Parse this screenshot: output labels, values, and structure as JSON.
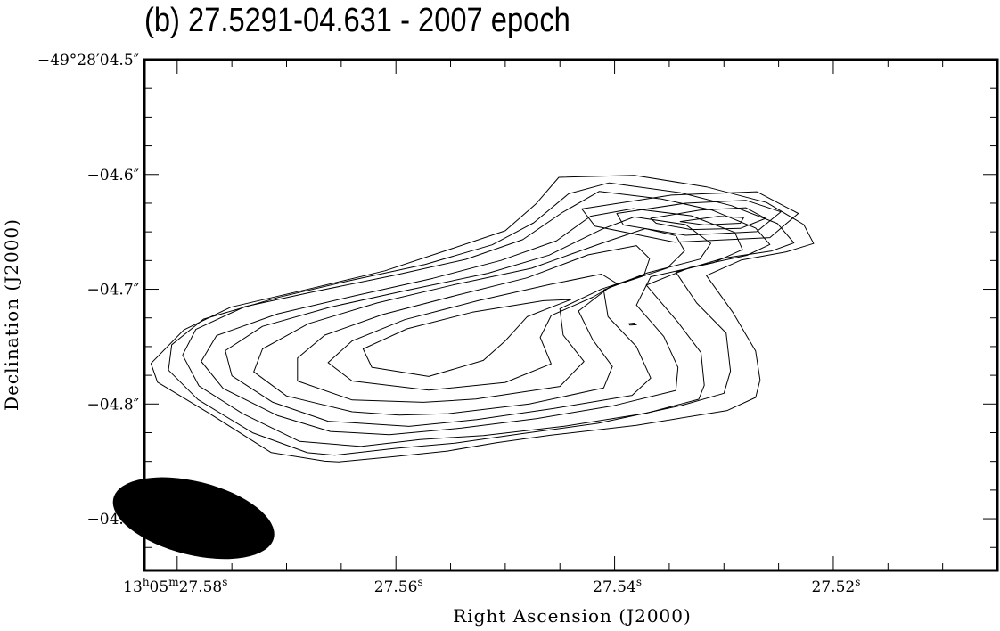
{
  "title": "(b) 27.5291-04.631 - 2007 epoch",
  "chart_data": {
    "type": "contour",
    "title": "(b) 27.5291-04.631 - 2007 epoch",
    "xlabel": "Right Ascension (J2000)",
    "ylabel": "Declination (J2000)",
    "xlim": [
      27.583,
      27.505
    ],
    "ylim": [
      -4.945,
      -4.5
    ],
    "x_ticks": [
      {
        "value": 27.58,
        "label_prefix": "13",
        "h": "h",
        "mid": "05",
        "m": "m",
        "sec": "27.58",
        "s": "s"
      },
      {
        "value": 27.56,
        "label": "27.56",
        "s": "s"
      },
      {
        "value": 27.54,
        "label": "27.54",
        "s": "s"
      },
      {
        "value": 27.52,
        "label": "27.52",
        "s": "s"
      }
    ],
    "y_ticks": [
      {
        "value": -4.5,
        "label": "−49°28′04.5″"
      },
      {
        "value": -4.6,
        "label": "−04.6″"
      },
      {
        "value": -4.7,
        "label": "−04.7″"
      },
      {
        "value": -4.8,
        "label": "−04.8″"
      },
      {
        "value": -4.9,
        "label": "−04.9″"
      }
    ],
    "contours": [
      [
        [
          27.5652,
          -4.8504
        ],
        [
          27.5603,
          -4.846
        ],
        [
          27.5553,
          -4.841
        ],
        [
          27.5508,
          -4.8337
        ],
        [
          27.5459,
          -4.8273
        ],
        [
          27.538,
          -4.8186
        ],
        [
          27.5297,
          -4.8057
        ],
        [
          27.5271,
          -4.7943
        ],
        [
          27.5267,
          -4.779
        ],
        [
          27.5271,
          -4.7539
        ],
        [
          27.5292,
          -4.72
        ],
        [
          27.5316,
          -4.6881
        ],
        [
          27.5284,
          -4.6745
        ],
        [
          27.5243,
          -4.6674
        ],
        [
          27.5218,
          -4.6601
        ],
        [
          27.5227,
          -4.6437
        ],
        [
          27.5261,
          -4.6244
        ],
        [
          27.5316,
          -4.6108
        ],
        [
          27.5382,
          -4.6007
        ],
        [
          27.5451,
          -4.6025
        ],
        [
          27.5472,
          -4.6257
        ],
        [
          27.55,
          -4.649
        ],
        [
          27.5548,
          -4.6643
        ],
        [
          27.561,
          -4.6839
        ],
        [
          27.5678,
          -4.6994
        ],
        [
          27.5751,
          -4.7157
        ],
        [
          27.5794,
          -4.7355
        ],
        [
          27.5824,
          -4.7647
        ],
        [
          27.5818,
          -4.781
        ],
        [
          27.5771,
          -4.808
        ],
        [
          27.5714,
          -4.8423
        ],
        [
          27.5665,
          -4.8498
        ]
      ],
      [
        [
          27.5656,
          -4.8446
        ],
        [
          27.56,
          -4.8386
        ],
        [
          27.5546,
          -4.8341
        ],
        [
          27.5485,
          -4.8259
        ],
        [
          27.5415,
          -4.8168
        ],
        [
          27.5339,
          -4.8013
        ],
        [
          27.53,
          -4.7907
        ],
        [
          27.5294,
          -4.7713
        ],
        [
          27.5298,
          -4.7381
        ],
        [
          27.5325,
          -4.7119
        ],
        [
          27.5344,
          -4.6851
        ],
        [
          27.53,
          -4.6729
        ],
        [
          27.5257,
          -4.6668
        ],
        [
          27.5236,
          -4.6596
        ],
        [
          27.5251,
          -4.6428
        ],
        [
          27.5293,
          -4.6272
        ],
        [
          27.534,
          -4.6158
        ],
        [
          27.5405,
          -4.6073
        ],
        [
          27.5442,
          -4.6168
        ],
        [
          27.5474,
          -4.6421
        ],
        [
          27.5512,
          -4.6613
        ],
        [
          27.5573,
          -4.6783
        ],
        [
          27.564,
          -4.692
        ],
        [
          27.5708,
          -4.7072
        ],
        [
          27.5776,
          -4.7261
        ],
        [
          27.5805,
          -4.7484
        ],
        [
          27.5808,
          -4.7705
        ],
        [
          27.5781,
          -4.7961
        ],
        [
          27.5731,
          -4.8251
        ],
        [
          27.5681,
          -4.8424
        ]
      ],
      [
        [
          27.5632,
          -4.837
        ],
        [
          27.5578,
          -4.831
        ],
        [
          27.552,
          -4.8275
        ],
        [
          27.5446,
          -4.8194
        ],
        [
          27.5371,
          -4.808
        ],
        [
          27.5323,
          -4.7959
        ],
        [
          27.5318,
          -4.7837
        ],
        [
          27.5321,
          -4.7553
        ],
        [
          27.5342,
          -4.7288
        ],
        [
          27.5371,
          -4.6964
        ],
        [
          27.5331,
          -4.681
        ],
        [
          27.5279,
          -4.6705
        ],
        [
          27.5258,
          -4.661
        ],
        [
          27.5271,
          -4.6467
        ],
        [
          27.5311,
          -4.631
        ],
        [
          27.5357,
          -4.6213
        ],
        [
          27.5414,
          -4.6147
        ],
        [
          27.5448,
          -4.6333
        ],
        [
          27.5484,
          -4.6568
        ],
        [
          27.5536,
          -4.674
        ],
        [
          27.5603,
          -4.6882
        ],
        [
          27.5672,
          -4.7015
        ],
        [
          27.5738,
          -4.7151
        ],
        [
          27.5783,
          -4.735
        ],
        [
          27.5795,
          -4.7573
        ],
        [
          27.578,
          -4.7843
        ],
        [
          27.574,
          -4.8085
        ],
        [
          27.5688,
          -4.8326
        ]
      ],
      [
        [
          27.5606,
          -4.8268
        ],
        [
          27.554,
          -4.821
        ],
        [
          27.5471,
          -4.8127
        ],
        [
          27.5401,
          -4.8015
        ],
        [
          27.5344,
          -4.7882
        ],
        [
          27.5342,
          -4.7681
        ],
        [
          27.5355,
          -4.7412
        ],
        [
          27.538,
          -4.7138
        ],
        [
          27.5367,
          -4.6891
        ],
        [
          27.531,
          -4.677
        ],
        [
          27.5283,
          -4.6655
        ],
        [
          27.529,
          -4.6505
        ],
        [
          27.533,
          -4.636
        ],
        [
          27.5383,
          -4.6298
        ],
        [
          27.5422,
          -4.6364
        ],
        [
          27.5453,
          -4.6577
        ],
        [
          27.5504,
          -4.6749
        ],
        [
          27.5566,
          -4.6904
        ],
        [
          27.5638,
          -4.7058
        ],
        [
          27.5708,
          -4.7214
        ],
        [
          27.5764,
          -4.7404
        ],
        [
          27.5778,
          -4.7629
        ],
        [
          27.5758,
          -4.7864
        ],
        [
          27.5708,
          -4.8102
        ],
        [
          27.566,
          -4.8239
        ]
      ],
      [
        [
          27.5588,
          -4.8195
        ],
        [
          27.5526,
          -4.8136
        ],
        [
          27.5456,
          -4.804
        ],
        [
          27.5384,
          -4.7925
        ],
        [
          27.5367,
          -4.7774
        ],
        [
          27.538,
          -4.75
        ],
        [
          27.5406,
          -4.724
        ],
        [
          27.541,
          -4.7007
        ],
        [
          27.537,
          -4.6857
        ],
        [
          27.5322,
          -4.6738
        ],
        [
          27.5312,
          -4.66
        ],
        [
          27.5335,
          -4.6437
        ],
        [
          27.5382,
          -4.637
        ],
        [
          27.5412,
          -4.6479
        ],
        [
          27.546,
          -4.6703
        ],
        [
          27.5516,
          -4.6861
        ],
        [
          27.559,
          -4.701
        ],
        [
          27.566,
          -4.7156
        ],
        [
          27.5722,
          -4.7324
        ],
        [
          27.5756,
          -4.7536
        ],
        [
          27.575,
          -4.7755
        ],
        [
          27.5713,
          -4.7983
        ],
        [
          27.5662,
          -4.815
        ]
      ],
      [
        [
          27.5552,
          -4.8084
        ],
        [
          27.5478,
          -4.8
        ],
        [
          27.541,
          -4.786
        ],
        [
          27.5402,
          -4.7673
        ],
        [
          27.542,
          -4.744
        ],
        [
          27.5433,
          -4.719
        ],
        [
          27.5405,
          -4.6984
        ],
        [
          27.5352,
          -4.6816
        ],
        [
          27.5336,
          -4.6666
        ],
        [
          27.5344,
          -4.6533
        ],
        [
          27.5372,
          -4.6472
        ],
        [
          27.5412,
          -4.66
        ],
        [
          27.5476,
          -4.6817
        ],
        [
          27.5548,
          -4.6963
        ],
        [
          27.5617,
          -4.7119
        ],
        [
          27.568,
          -4.73
        ],
        [
          27.5722,
          -4.752
        ],
        [
          27.573,
          -4.772
        ],
        [
          27.57,
          -4.793
        ],
        [
          27.564,
          -4.8068
        ],
        [
          27.5597,
          -4.8097
        ]
      ],
      [
        [
          27.5527,
          -4.7957
        ],
        [
          27.545,
          -4.7847
        ],
        [
          27.5428,
          -4.763
        ],
        [
          27.5447,
          -4.74
        ],
        [
          27.545,
          -4.717
        ],
        [
          27.5412,
          -4.6998
        ],
        [
          27.5373,
          -4.6876
        ],
        [
          27.5368,
          -4.6733
        ],
        [
          27.538,
          -4.662
        ],
        [
          27.5424,
          -4.67
        ],
        [
          27.548,
          -4.69
        ],
        [
          27.5545,
          -4.7054
        ],
        [
          27.5612,
          -4.722
        ],
        [
          27.5665,
          -4.74
        ],
        [
          27.569,
          -4.76
        ],
        [
          27.569,
          -4.78
        ],
        [
          27.564,
          -4.7965
        ],
        [
          27.5575,
          -4.7985
        ]
      ],
      [
        [
          27.55,
          -4.7812
        ],
        [
          27.5458,
          -4.765
        ],
        [
          27.5468,
          -4.742
        ],
        [
          27.5458,
          -4.723
        ],
        [
          27.542,
          -4.707
        ],
        [
          27.5398,
          -4.695
        ],
        [
          27.5412,
          -4.6868
        ],
        [
          27.546,
          -4.696
        ],
        [
          27.5525,
          -4.71
        ],
        [
          27.5592,
          -4.7265
        ],
        [
          27.564,
          -4.745
        ],
        [
          27.5662,
          -4.764
        ],
        [
          27.564,
          -4.78
        ],
        [
          27.557,
          -4.788
        ]
      ],
      [
        [
          27.552,
          -4.762
        ],
        [
          27.55,
          -4.745
        ],
        [
          27.548,
          -4.724
        ],
        [
          27.544,
          -4.709
        ],
        [
          27.5465,
          -4.71
        ],
        [
          27.553,
          -4.72
        ],
        [
          27.559,
          -4.7345
        ],
        [
          27.563,
          -4.752
        ],
        [
          27.5622,
          -4.768
        ],
        [
          27.557,
          -4.776
        ]
      ],
      [
        [
          27.5367,
          -4.6382
        ],
        [
          27.5322,
          -4.631
        ],
        [
          27.528,
          -4.629
        ],
        [
          27.5262,
          -4.6383
        ],
        [
          27.5285,
          -4.647
        ],
        [
          27.533,
          -4.648
        ],
        [
          27.5362,
          -4.6425
        ]
      ],
      [
        [
          27.534,
          -4.641
        ],
        [
          27.5305,
          -4.6365
        ],
        [
          27.5282,
          -4.6375
        ],
        [
          27.5285,
          -4.6425
        ],
        [
          27.5318,
          -4.644
        ]
      ],
      [
        [
          27.5398,
          -4.634
        ],
        [
          27.5335,
          -4.625
        ],
        [
          27.528,
          -4.6225
        ],
        [
          27.5248,
          -4.6326
        ],
        [
          27.527,
          -4.6498
        ],
        [
          27.5335,
          -4.653
        ],
        [
          27.5392,
          -4.644
        ]
      ],
      [
        [
          27.543,
          -4.63
        ],
        [
          27.5348,
          -4.618
        ],
        [
          27.527,
          -4.615
        ],
        [
          27.5232,
          -4.634
        ],
        [
          27.5258,
          -4.655
        ],
        [
          27.5345,
          -4.659
        ],
        [
          27.5418,
          -4.645
        ]
      ],
      [
        [
          27.5387,
          -4.73
        ],
        [
          27.5382,
          -4.7295
        ],
        [
          27.538,
          -4.731
        ],
        [
          27.5386,
          -4.7313
        ]
      ]
    ],
    "beam": {
      "x": 27.5785,
      "y": -4.8995,
      "major_arcsec": 0.072,
      "minor_arcsec": 0.032,
      "angle_deg": -14
    }
  }
}
